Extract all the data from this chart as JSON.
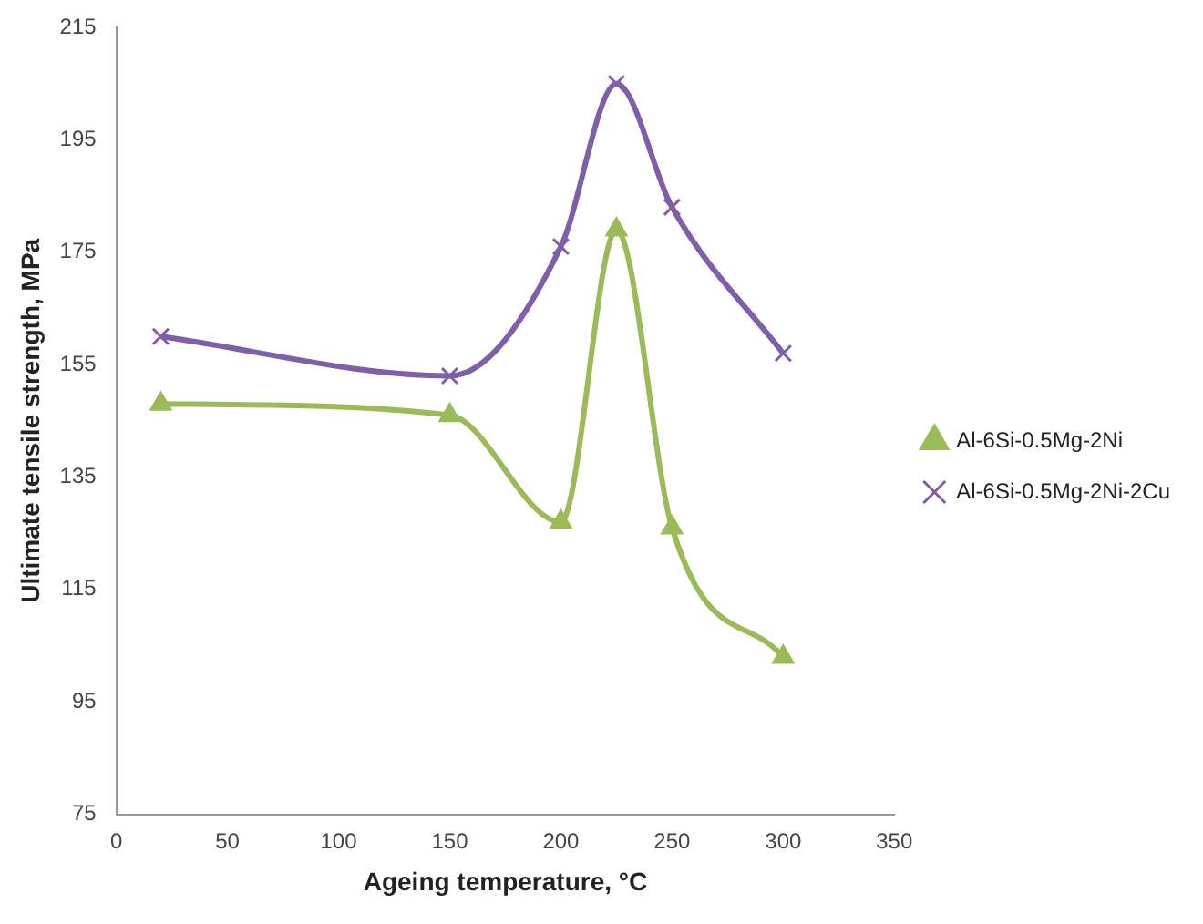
{
  "chart_data": {
    "type": "line",
    "xlabel": "Ageing temperature, °C",
    "ylabel": "Ultimate tensile strength, MPa",
    "x": [
      20,
      150,
      200,
      225,
      250,
      300
    ],
    "series": [
      {
        "name": "Al-6Si-0.5Mg-2Ni",
        "color": "#9bbb59",
        "marker": "triangle",
        "values": [
          148,
          146,
          127,
          179,
          126,
          103
        ]
      },
      {
        "name": "Al-6Si-0.5Mg-2Ni-2Cu",
        "color": "#7f5fa8",
        "marker": "cross",
        "values": [
          160,
          153,
          176,
          205,
          183,
          157
        ]
      }
    ],
    "xlim": [
      0,
      350
    ],
    "xticks": [
      0,
      50,
      100,
      150,
      200,
      250,
      300,
      350
    ],
    "ylim": [
      75,
      215
    ],
    "yticks": [
      75,
      95,
      115,
      135,
      155,
      175,
      195,
      215
    ],
    "grid": false,
    "legend": "right"
  }
}
